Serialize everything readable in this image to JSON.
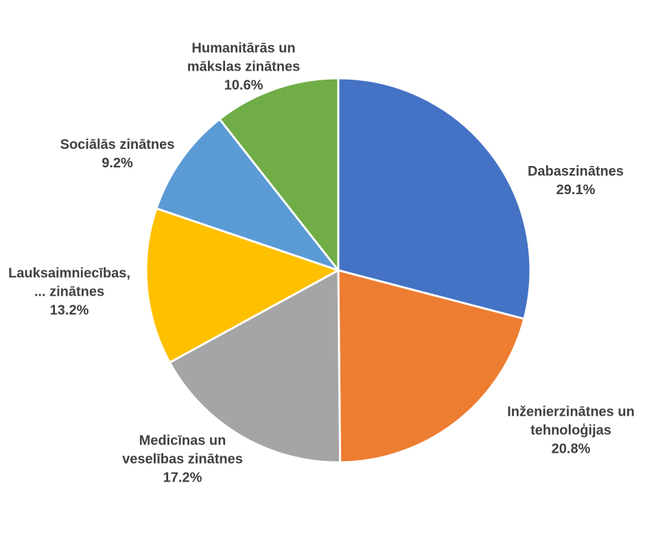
{
  "chart_data": {
    "type": "pie",
    "title": "",
    "start_angle_deg": 0,
    "direction": "clockwise",
    "slices": [
      {
        "label_lines": [
          "Dabaszinātnes"
        ],
        "value": 29.1,
        "display": "29.1%",
        "color": "#4472C4"
      },
      {
        "label_lines": [
          "Inženierzinātnes un",
          "tehnoloģijas"
        ],
        "value": 20.8,
        "display": "20.8%",
        "color": "#ED7D31"
      },
      {
        "label_lines": [
          "Medicīnas un",
          "veselības zinātnes"
        ],
        "value": 17.2,
        "display": "17.2%",
        "color": "#A5A5A5"
      },
      {
        "label_lines": [
          "Lauksaimniecības,",
          "... zinātnes"
        ],
        "value": 13.2,
        "display": "13.2%",
        "color": "#FFC000"
      },
      {
        "label_lines": [
          "Sociālās zinātnes"
        ],
        "value": 9.2,
        "display": "9.2%",
        "color": "#5B9BD5"
      },
      {
        "label_lines": [
          "Humanitārās un",
          "mākslas zinātnes"
        ],
        "value": 10.6,
        "display": "10.6%",
        "color": "#70AD47"
      }
    ]
  }
}
